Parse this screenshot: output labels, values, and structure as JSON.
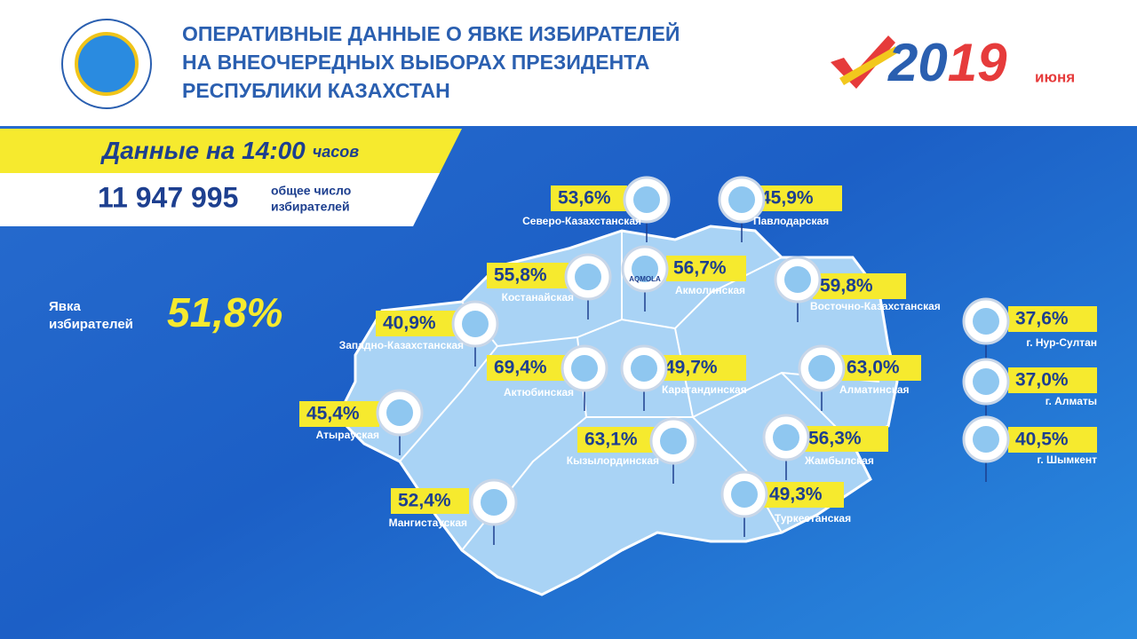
{
  "header": {
    "title_lines": [
      "ОПЕРАТИВНЫЕ ДАННЫЕ О ЯВКЕ ИЗБИРАТЕЛЕЙ",
      "НА ВНЕОЧЕРЕДНЫХ ВЫБОРАХ ПРЕЗИДЕНТА",
      "РЕСПУБЛИКИ КАЗАХСТАН"
    ],
    "year_parts": [
      "20",
      "19"
    ],
    "month": "июня"
  },
  "banner": {
    "time_text": "Данные на 14:00",
    "time_unit": "часов",
    "total": "11 947 995",
    "total_label_lines": [
      "общее число",
      "избирателей"
    ]
  },
  "turnout": {
    "label_lines": [
      "Явка",
      "избирателей"
    ],
    "value": "51,8%"
  },
  "regions": [
    {
      "name": "Северо-Казахстанская",
      "value": "53,6%"
    },
    {
      "name": "Павлодарская",
      "value": "45,9%"
    },
    {
      "name": "Костанайская",
      "value": "55,8%"
    },
    {
      "name": "Акмолинская",
      "value": "56,7%",
      "emblem": "AQMOLA"
    },
    {
      "name": "Восточно-Казахстанская",
      "value": "59,8%"
    },
    {
      "name": "Западно-Казахстанская",
      "value": "40,9%"
    },
    {
      "name": "Актюбинская",
      "value": "69,4%"
    },
    {
      "name": "Карагандинская",
      "value": "49,7%"
    },
    {
      "name": "Алматинская",
      "value": "63,0%"
    },
    {
      "name": "Атырауская",
      "value": "45,4%"
    },
    {
      "name": "Кызылординская",
      "value": "63,1%"
    },
    {
      "name": "Жамбылская",
      "value": "56,3%"
    },
    {
      "name": "Туркестанская",
      "value": "49,3%"
    },
    {
      "name": "Мангистауская",
      "value": "52,4%"
    }
  ],
  "cities": [
    {
      "name": "г. Нур-Султан",
      "value": "37,6%"
    },
    {
      "name": "г. Алматы",
      "value": "37,0%"
    },
    {
      "name": "г. Шымкент",
      "value": "40,5%"
    }
  ]
}
